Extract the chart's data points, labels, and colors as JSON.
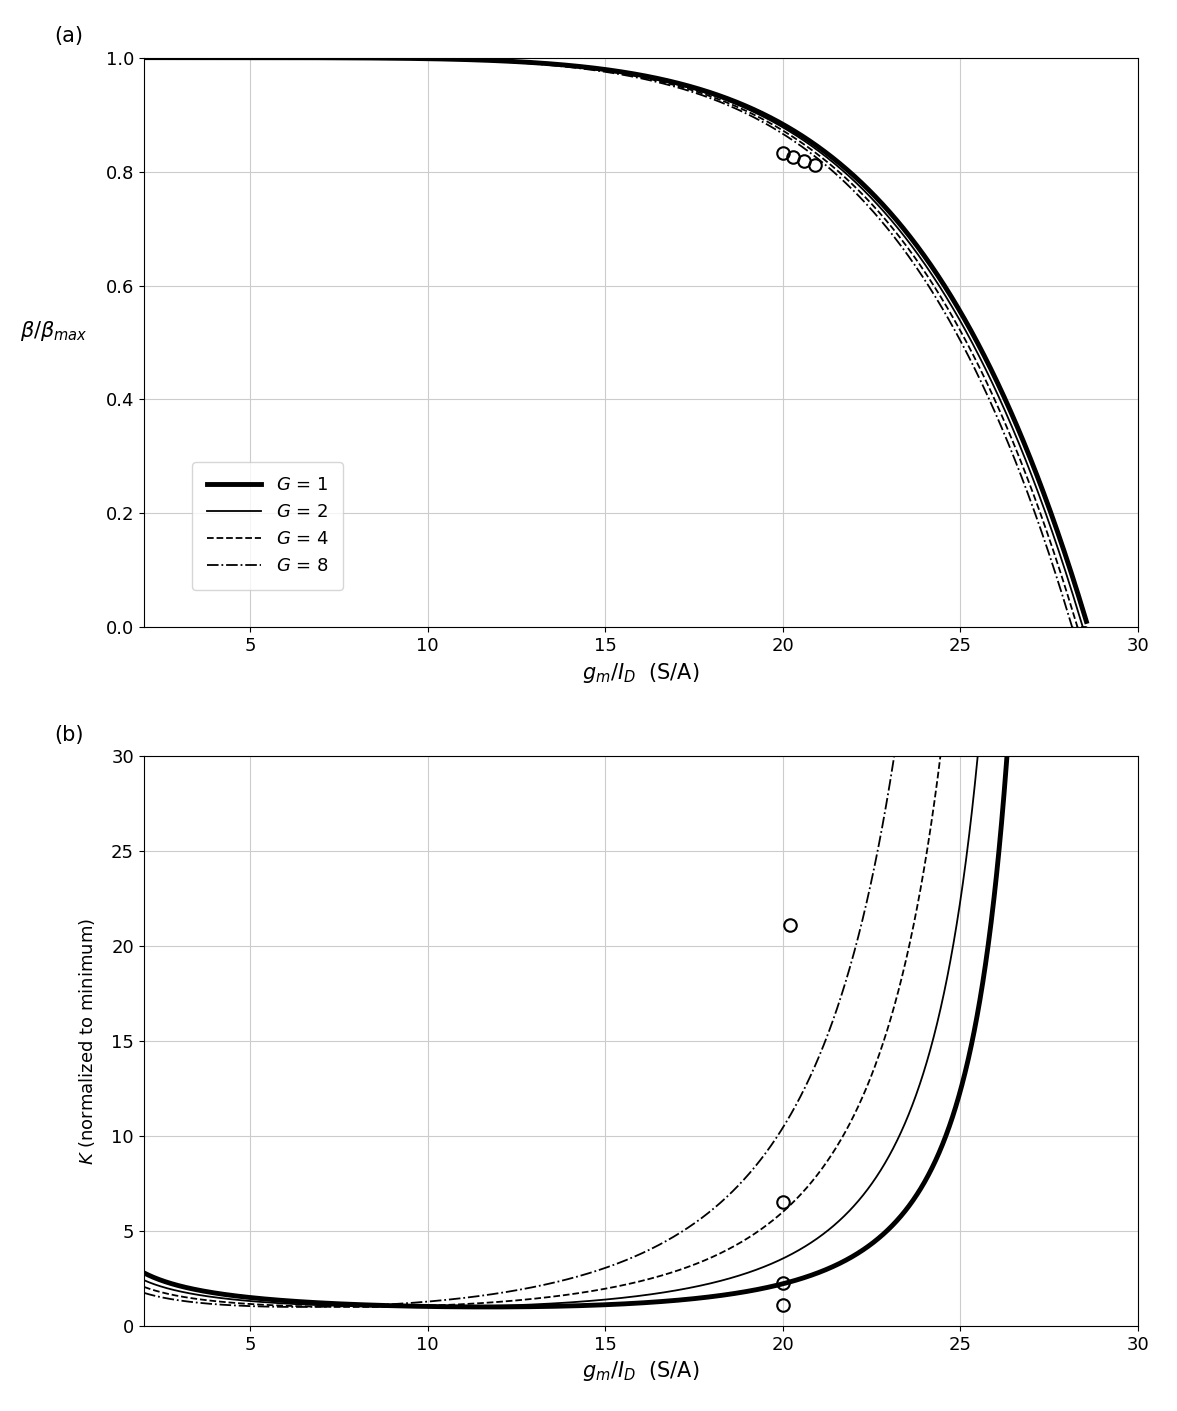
{
  "xmax": 28.6,
  "xlim": [
    2,
    30
  ],
  "xticks": [
    5,
    10,
    15,
    20,
    25,
    30
  ],
  "ylim_a": [
    0,
    1.0
  ],
  "yticks_a": [
    0,
    0.2,
    0.4,
    0.6,
    0.8,
    1.0
  ],
  "ylim_b": [
    0,
    30
  ],
  "yticks_b": [
    0,
    5,
    10,
    15,
    20,
    25,
    30
  ],
  "xlabel": "$g_m/I_D$  (S/A)",
  "ylabel_a": "$\\beta/\\beta_{max}$",
  "ylabel_b": "$K$ (normalized to minimum)",
  "label_a": "(a)",
  "label_b": "(b)",
  "G_values": [
    1,
    2,
    4,
    8
  ],
  "linewidths": [
    3.5,
    1.3,
    1.3,
    1.3
  ],
  "linestyles": [
    "-",
    "-",
    "--",
    "-."
  ],
  "legend_labels": [
    "$G$ = 1",
    "$G$ = 2",
    "$G$ = 4",
    "$G$ = 8"
  ],
  "circle_a": [
    [
      20.0,
      0.833
    ],
    [
      20.3,
      0.825
    ],
    [
      20.6,
      0.819
    ],
    [
      20.9,
      0.812
    ]
  ],
  "circle_b": [
    [
      20.0,
      2.25
    ],
    [
      20.0,
      1.1
    ],
    [
      20.0,
      6.55
    ],
    [
      20.2,
      21.1
    ]
  ],
  "bg_color": "#ffffff",
  "grid_color": "#cccccc",
  "beta_shift": [
    0.0,
    0.15,
    0.3,
    0.45
  ]
}
